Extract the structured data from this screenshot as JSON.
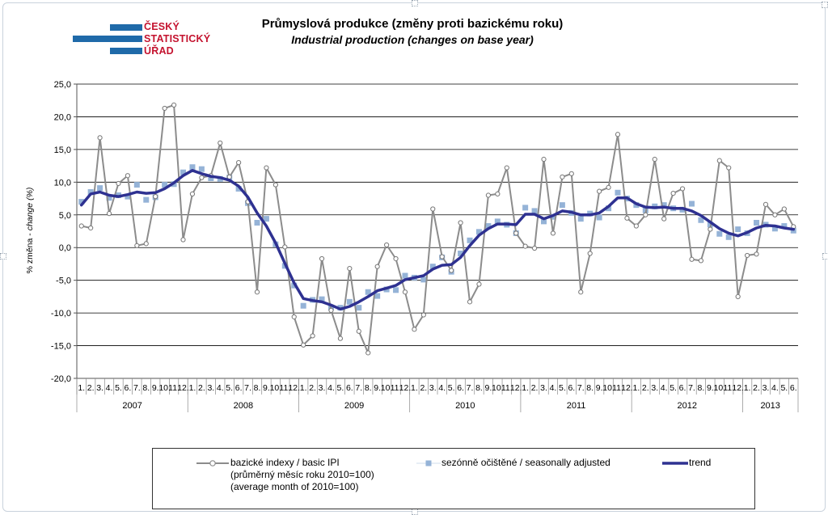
{
  "logo": {
    "line1": "ČESKÝ",
    "line2": "STATISTICKÝ",
    "line3": "ÚŘAD"
  },
  "title_cz": "Průmyslová produkce (změny proti bazickému roku)",
  "title_en": "Industrial production (changes on base year)",
  "colors": {
    "basic": "#8c8c8c",
    "seasonal": "#95b3d7",
    "trend": "#2e3191",
    "logo_blue": "#1f6aa9",
    "logo_red": "#c4132f"
  },
  "chart_data": {
    "type": "line",
    "ylabel_cz": "% změna - ",
    "ylabel_en": "change (%)",
    "ylim": [
      -20,
      25
    ],
    "yticks": [
      "-20,0",
      "-15,0",
      "-10,0",
      "-5,0",
      "0,0",
      "5,0",
      "10,0",
      "15,0",
      "20,0",
      "25,0"
    ],
    "ytick_values": [
      -20,
      -15,
      -10,
      -5,
      0,
      5,
      10,
      15,
      20,
      25
    ],
    "grid": true,
    "legend_position": "bottom",
    "month_labels": [
      "1.",
      "2.",
      "3.",
      "4.",
      "5.",
      "6.",
      "7.",
      "8.",
      "9.",
      "10.",
      "11.",
      "12."
    ],
    "years": [
      "2007",
      "2008",
      "2009",
      "2010",
      "2011",
      "2012",
      "2013"
    ],
    "months_per_year": [
      12,
      12,
      12,
      12,
      12,
      12,
      6
    ],
    "series": [
      {
        "name": "bazické indexy / basic IPI",
        "name_line2": "(průměrný měsíc roku 2010=100)",
        "name_line3": "(average month of 2010=100)",
        "values": [
          3.3,
          3.0,
          16.8,
          5.2,
          9.8,
          11.0,
          0.3,
          0.6,
          7.8,
          21.3,
          21.8,
          1.2,
          8.2,
          10.7,
          11.0,
          16.0,
          10.8,
          13.0,
          7.0,
          -6.8,
          12.2,
          9.6,
          0.1,
          -10.6,
          -14.9,
          -13.5,
          -1.7,
          -9.6,
          -13.9,
          -3.2,
          -12.8,
          -16.1,
          -2.9,
          0.4,
          -1.7,
          -6.8,
          -12.5,
          -10.3,
          5.9,
          -1.4,
          -3.5,
          3.8,
          -8.3,
          -5.6,
          8.0,
          8.2,
          12.2,
          2.2,
          0.2,
          -0.1,
          13.5,
          2.2,
          10.8,
          11.3,
          -6.8,
          -0.9,
          8.6,
          9.2,
          17.3,
          4.5,
          3.3,
          5.0,
          13.5,
          4.4,
          8.3,
          9.0,
          -1.8,
          -2.0,
          2.8,
          13.3,
          12.2,
          -7.5,
          -1.2,
          -1.0,
          6.6,
          5.0,
          5.9,
          3.2
        ]
      },
      {
        "name": "sezónně očištěné / seasonally adjusted",
        "values": [
          7.0,
          8.5,
          9.1,
          7.6,
          8.0,
          7.8,
          9.6,
          7.3,
          7.7,
          9.6,
          9.7,
          11.5,
          12.3,
          12.0,
          10.6,
          10.5,
          10.7,
          9.0,
          6.8,
          3.8,
          4.4,
          0.5,
          -2.8,
          -5.8,
          -8.9,
          -8.0,
          -7.9,
          -9.2,
          -9.2,
          -8.3,
          -9.2,
          -6.8,
          -7.4,
          -6.4,
          -6.5,
          -4.3,
          -4.6,
          -4.9,
          -2.9,
          -1.5,
          -3.7,
          -0.9,
          1.1,
          2.4,
          3.3,
          4.0,
          3.5,
          2.2,
          6.1,
          5.6,
          4.0,
          4.7,
          6.5,
          5.3,
          4.4,
          5.2,
          4.6,
          6.0,
          8.4,
          7.5,
          6.5,
          5.7,
          6.3,
          6.5,
          6.0,
          5.8,
          6.7,
          4.2,
          3.5,
          2.1,
          1.6,
          2.8,
          2.2,
          3.8,
          3.5,
          2.9,
          3.3,
          2.6
        ]
      },
      {
        "name": "trend",
        "values": [
          6.5,
          8.2,
          8.5,
          8.0,
          7.8,
          8.1,
          8.5,
          8.3,
          8.4,
          9.0,
          9.9,
          11.0,
          11.8,
          11.3,
          10.9,
          10.7,
          10.3,
          9.4,
          7.7,
          5.3,
          3.3,
          0.7,
          -2.4,
          -5.4,
          -7.8,
          -8.1,
          -8.3,
          -8.8,
          -9.4,
          -9.0,
          -8.3,
          -7.5,
          -6.6,
          -6.2,
          -5.8,
          -4.9,
          -4.6,
          -4.3,
          -3.3,
          -2.7,
          -2.6,
          -1.5,
          0.3,
          1.9,
          2.9,
          3.6,
          3.6,
          3.5,
          5.1,
          5.1,
          4.4,
          4.9,
          5.6,
          5.4,
          5.0,
          5.0,
          5.3,
          6.3,
          7.6,
          7.6,
          6.7,
          6.2,
          6.1,
          6.2,
          6.0,
          6.0,
          5.6,
          4.9,
          3.9,
          2.9,
          2.2,
          1.8,
          2.3,
          3.0,
          3.4,
          3.3,
          3.0,
          2.8
        ]
      }
    ]
  }
}
